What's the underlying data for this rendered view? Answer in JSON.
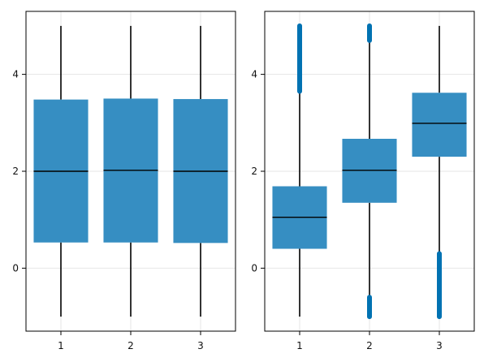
{
  "chart_data": [
    {
      "type": "box",
      "categories": [
        "1",
        "2",
        "3"
      ],
      "ylim": [
        -1.3,
        5.3
      ],
      "yticks": [
        0,
        2,
        4
      ],
      "grid": true,
      "boxes": [
        {
          "category": "1",
          "whisker_low": -1.0,
          "q1": 0.53,
          "median": 2.0,
          "q3": 3.48,
          "whisker_high": 5.0,
          "outliers": []
        },
        {
          "category": "2",
          "whisker_low": -1.0,
          "q1": 0.53,
          "median": 2.02,
          "q3": 3.5,
          "whisker_high": 5.0,
          "outliers": []
        },
        {
          "category": "3",
          "whisker_low": -1.0,
          "q1": 0.52,
          "median": 2.0,
          "q3": 3.49,
          "whisker_high": 5.0,
          "outliers": []
        }
      ],
      "box_color": "#2b88bf"
    },
    {
      "type": "box",
      "categories": [
        "1",
        "2",
        "3"
      ],
      "ylim": [
        -1.3,
        5.3
      ],
      "yticks": [
        0,
        2,
        4
      ],
      "grid": true,
      "boxes": [
        {
          "category": "1",
          "whisker_low": -1.0,
          "q1": 0.4,
          "median": 1.05,
          "q3": 1.69,
          "whisker_high": 3.65,
          "outliers": [
            [
              3.65,
              5.0
            ]
          ]
        },
        {
          "category": "2",
          "whisker_low": -0.6,
          "q1": 1.35,
          "median": 2.02,
          "q3": 2.67,
          "whisker_high": 4.7,
          "outliers": [
            [
              -1.0,
              -0.6
            ],
            [
              4.7,
              5.0
            ]
          ]
        },
        {
          "category": "3",
          "whisker_low": 0.3,
          "q1": 2.3,
          "median": 2.99,
          "q3": 3.62,
          "whisker_high": 5.0,
          "outliers": [
            [
              -1.0,
              0.3
            ]
          ]
        }
      ],
      "box_color": "#2b88bf"
    }
  ],
  "colors": {
    "box": "#2b88bf",
    "outlier": "#0072b2",
    "median": "#000000",
    "whisker": "#000000",
    "grid": "#e6e6e6",
    "frame": "#000000"
  }
}
